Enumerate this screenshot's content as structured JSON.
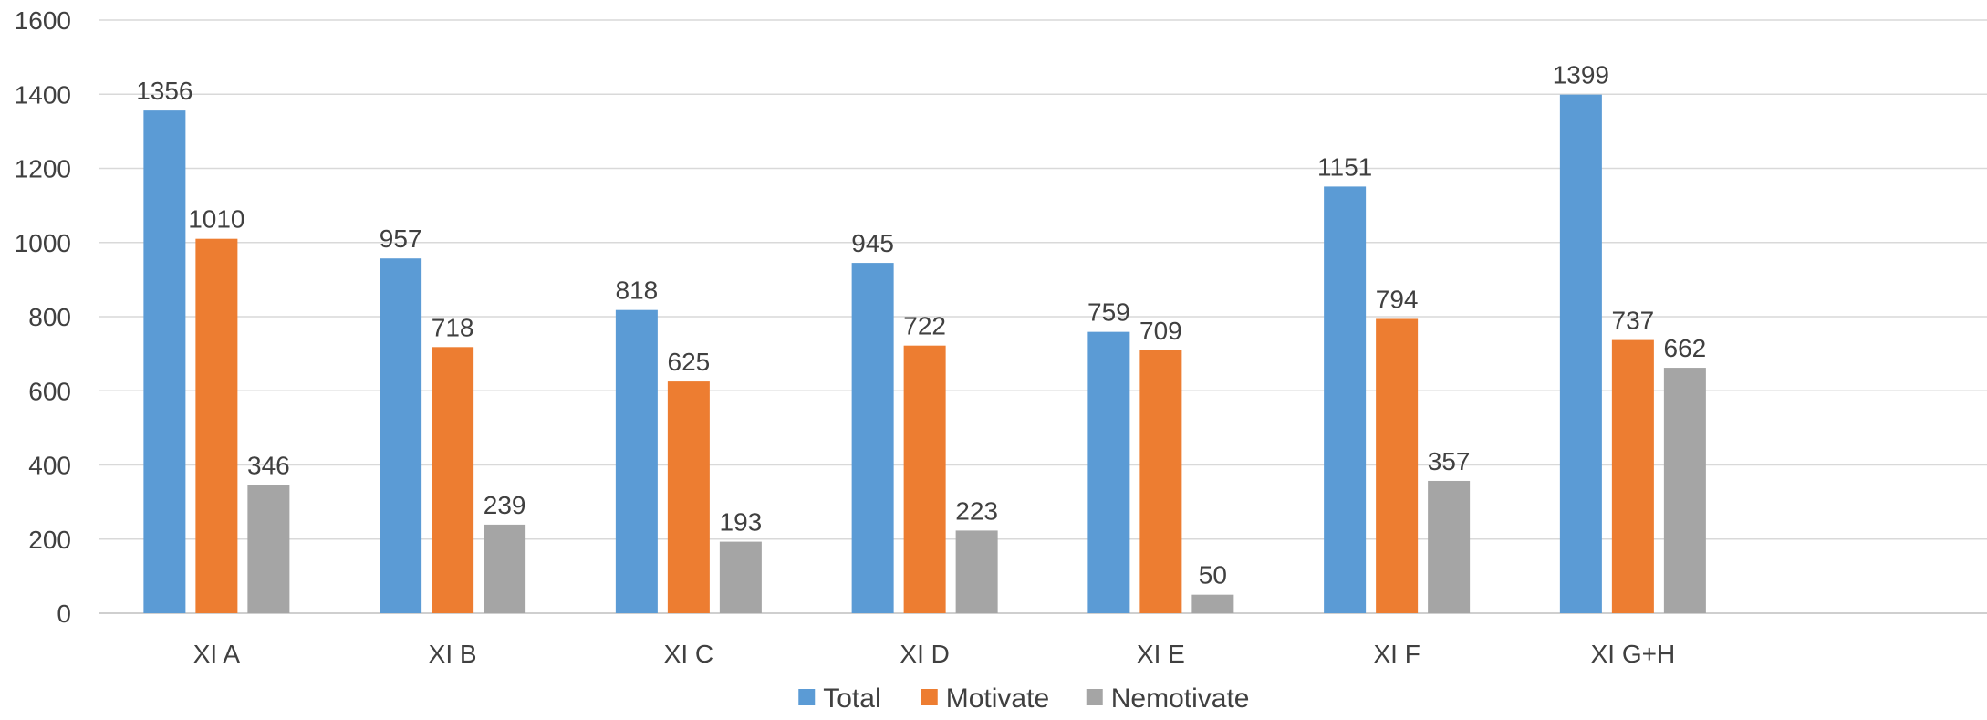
{
  "chart_data": {
    "type": "bar",
    "categories": [
      "XI A",
      "XI B",
      "XI C",
      "XI D",
      "XI E",
      "XI F",
      "XI G+H",
      ""
    ],
    "series": [
      {
        "name": "Total",
        "color": "#5b9bd5",
        "values": [
          1356,
          957,
          818,
          945,
          759,
          1151,
          1399,
          null
        ]
      },
      {
        "name": "Motivate",
        "color": "#ed7d31",
        "values": [
          1010,
          718,
          625,
          722,
          709,
          794,
          737,
          null
        ]
      },
      {
        "name": "Nemotivate",
        "color": "#a5a5a5",
        "values": [
          346,
          239,
          193,
          223,
          50,
          357,
          662,
          null
        ]
      }
    ],
    "ylim": [
      0,
      1600
    ],
    "yticks": [
      0,
      200,
      400,
      600,
      800,
      1000,
      1200,
      1400,
      1600
    ],
    "grid": true,
    "legend": "bottom",
    "data_labels": true,
    "title": "",
    "xlabel": "",
    "ylabel": ""
  }
}
